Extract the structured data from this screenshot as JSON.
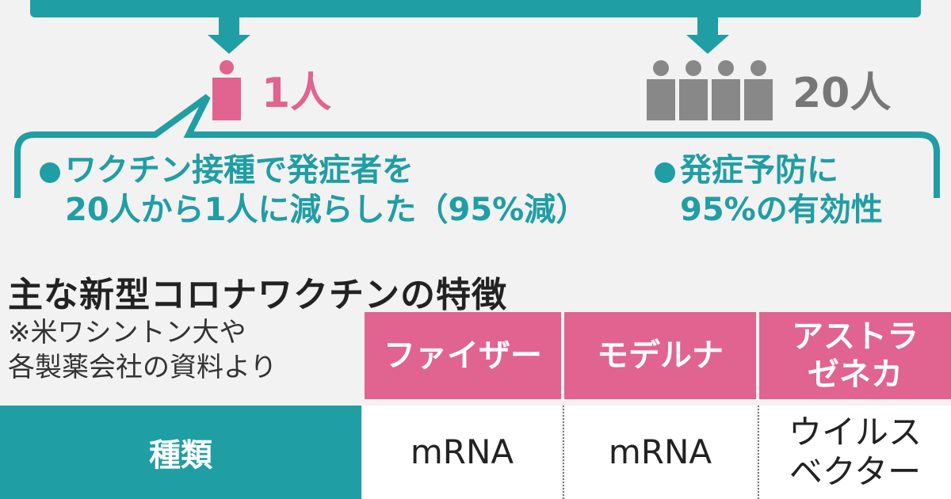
{
  "top_banner": {
    "text": ""
  },
  "left_group": {
    "count_label": "1人"
  },
  "right_group": {
    "count_label": "20人"
  },
  "notes": {
    "left_line1": "ワクチン接種で発症者を",
    "left_line2": "20人から1人に減らした（95%減）",
    "right_line1": "発症予防に",
    "right_line2": "95%の有効性"
  },
  "section": {
    "title": "主な新型コロナワクチンの特徴",
    "source_line1": "※米ワシントン大や",
    "source_line2": "各製薬会社の資料より"
  },
  "table": {
    "headers": [
      {
        "line1": "ファイザー",
        "line2": ""
      },
      {
        "line1": "モデルナ",
        "line2": ""
      },
      {
        "line1": "アストラ",
        "line2": "ゼネカ"
      }
    ],
    "row_label": "種類",
    "cells": [
      {
        "line1": "mRNA",
        "line2": ""
      },
      {
        "line1": "mRNA",
        "line2": ""
      },
      {
        "line1": "ウイルス",
        "line2": "ベクター"
      }
    ]
  },
  "colors": {
    "teal": "#1f9ea4",
    "pink": "#e0648f",
    "gray": "#777777",
    "background": "#f2f2f2"
  }
}
